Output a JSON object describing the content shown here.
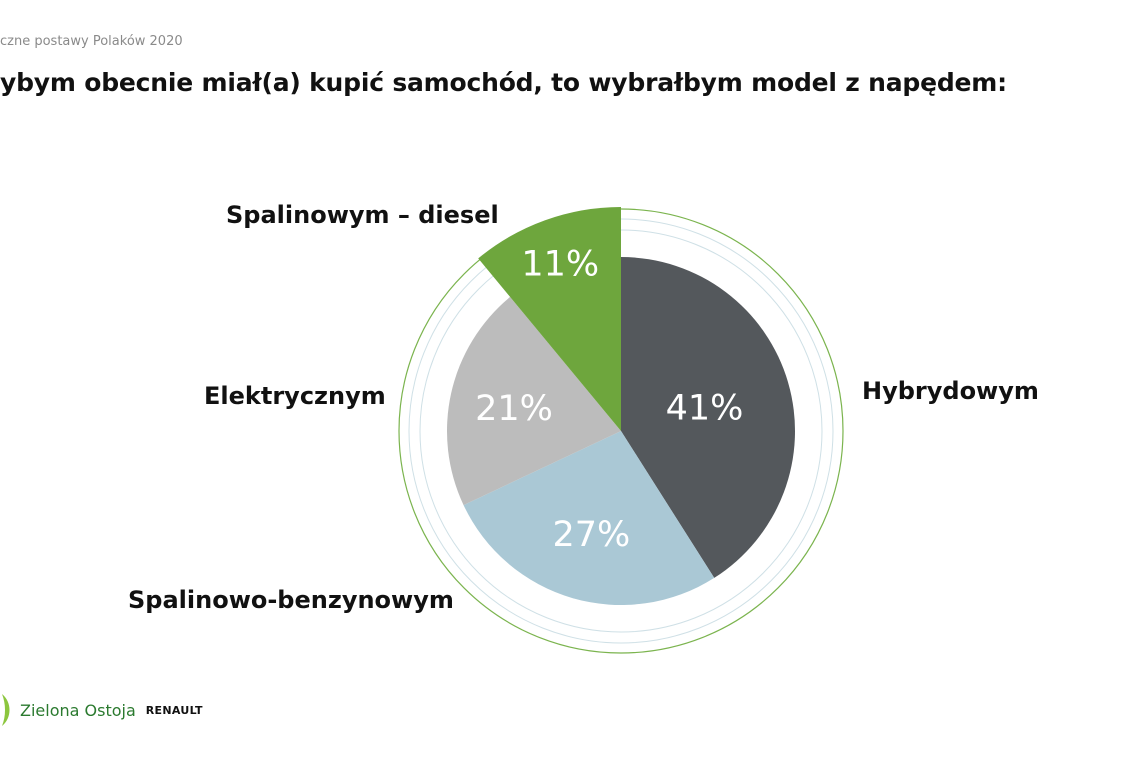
{
  "header": {
    "subtitle": "czne postawy Polaków 2020",
    "title": "ybym obecnie miał(a) kupić samochód, to wybrałbym model z napędem:"
  },
  "chart_data": {
    "type": "pie",
    "title": "ybym obecnie miał(a) kupić samochód, to wybrałbym model z napędem:",
    "slices": [
      {
        "label": "Hybrydowym",
        "value": 41,
        "value_label": "41%",
        "color": "#54585c"
      },
      {
        "label": "Spalinowo-benzynowym",
        "value": 27,
        "value_label": "27%",
        "color": "#aac8d5"
      },
      {
        "label": "Elektrycznym",
        "value": 21,
        "value_label": "21%",
        "color": "#bcbcbc"
      },
      {
        "label": "Spalinowym – diesel",
        "value": 11,
        "value_label": "11%",
        "color": "#6ea63d"
      }
    ],
    "legend": "none",
    "start_angle_deg": 0,
    "direction": "clockwise",
    "decoration_colors": {
      "outer_ring": "#7bb44e",
      "inner_rings": "#cfe0e6"
    }
  },
  "footer": {
    "brand": "Zielona Ostoja",
    "partner": "RENAULT",
    "leaf_color": "#8cc63e"
  }
}
